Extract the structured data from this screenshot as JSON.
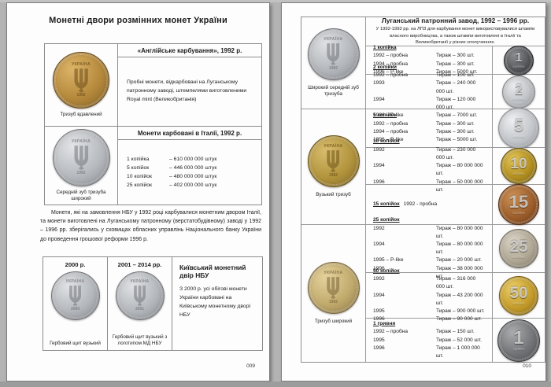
{
  "left_page": {
    "page_number": "009",
    "title": "Монетні двори розмінних монет України",
    "table1": {
      "rows": [
        {
          "header": "«Англійське карбування», 1992 р.",
          "body": "Пробні монети, відкарбовані на Луганському патронному заводі, штемпелями виготовленими Royal mint (Великобританія)",
          "coin_caption": "Тризуб вдавлений",
          "coin": {
            "legend": "УКРАЇНА",
            "year": "1992",
            "size": 72,
            "base": "#b5893c",
            "hi": "#dcb468",
            "lo": "#6c4d1a"
          }
        },
        {
          "header": "Монети карбовані в Італії, 1992 р.",
          "coin_caption": "Середній зуб тризуба широкий",
          "coin": {
            "legend": "УКРАЇНА",
            "year": "1992",
            "size": 73,
            "base": "#b6b9bd",
            "hi": "#e2e4e7",
            "lo": "#74777c"
          },
          "mintages": [
            {
              "denom": "1 копійка",
              "qty": "– 610 000 000 штук"
            },
            {
              "denom": "5 копійок",
              "qty": "– 446 000 000 штук"
            },
            {
              "denom": "10 копійок",
              "qty": "– 480 000 000 штук"
            },
            {
              "denom": "25 копійок",
              "qty": "– 402 000 000 штук"
            }
          ]
        }
      ]
    },
    "paragraph": "Монети, які на замовлення НБУ у 1992 році карбувалися монетним двором Італії, та монети виготовлені на Луганському патронному (верстатобудівному) заводі у 1992 – 1996 рр. зберігались у сховищах обласних управлінь Національного банку України до проведення грошової реформи 1996 р.",
    "table2": {
      "columns": [
        {
          "header": "2000 р.",
          "caption": "Гербовий щит вузький",
          "coin": {
            "legend": "УКРАЇНА",
            "year": "2000",
            "size": 62,
            "base": "#b4b7bb",
            "hi": "#e0e2e5",
            "lo": "#72757a"
          }
        },
        {
          "header": "2001 – 2014 рр.",
          "caption": "Гербовий щит вузький з логотипом МД НБУ",
          "coin": {
            "legend": "УКРАЇНА",
            "year": "2001",
            "size": 62,
            "base": "#b4b7bb",
            "hi": "#e0e2e5",
            "lo": "#72757a"
          }
        }
      ],
      "info": {
        "title": "Київський монетний двір НБУ",
        "body": "З 2000 р. усі обігові монети України карбовані на Київському монетному дворі НБУ"
      }
    }
  },
  "right_page": {
    "page_number": "010",
    "header": {
      "title": "Луганський патронний завод, 1992 – 1996 рр.",
      "subtitle": "У 1992-1993 рр. на ЛПЗ для карбування монет використовувалися штампи власного виробництва, а також штампи виготовлені в Італії та Великобританії у різних сполученнях."
    },
    "groups": [
      {
        "caption": "Широкий середній зуб тризуба",
        "coin": {
          "legend": "УКРАЇНА",
          "year": "1992",
          "size": 66,
          "base": "#b3b6ba",
          "hi": "#dfe1e4",
          "lo": "#717479"
        }
      },
      {
        "caption": "Вузький тризуб",
        "coin": {
          "legend": "УКРАЇНА",
          "year": "1992",
          "size": 66,
          "base": "#b2943d",
          "hi": "#d9bd6e",
          "lo": "#6d5418"
        }
      },
      {
        "caption": "Тризуб широкий",
        "coin": {
          "legend": "УКРАЇНА",
          "year": "1992",
          "size": 66,
          "base": "#c1aa6c",
          "hi": "#e4d29d",
          "lo": "#7a653a"
        }
      }
    ],
    "sections": [
      {
        "name": "1 копійка",
        "coin": {
          "value": "1",
          "sub": "копійка",
          "size": 38,
          "base": "#54565a",
          "hi": "#8a8c90",
          "lo": "#232426"
        },
        "entries": [
          {
            "y": "1992 – пробна",
            "t": "Тираж – 300 шт."
          },
          {
            "y": "1994 – пробна",
            "t": "Тираж – 300 шт."
          },
          {
            "y": "1996 – P-like",
            "t": "Тираж – 5000 шт."
          }
        ]
      },
      {
        "name": "2 копійки",
        "coin": {
          "value": "2",
          "sub": "копійки",
          "size": 42,
          "base": "#c0c3c7",
          "hi": "#e9ebed",
          "lo": "#85888c"
        },
        "entries": [
          {
            "y": "1992 – пробна",
            "t": "Тираж – 100 шт."
          },
          {
            "y": "1993",
            "t": "Тираж – 240 000 000 шт."
          },
          {
            "y": "1994",
            "t": "Тираж – 120 000 000 шт."
          },
          {
            "y": "1996 – P-like",
            "t": "Тираж – 7000 шт."
          }
        ]
      },
      {
        "name": "5 копійок",
        "coin": {
          "value": "5",
          "sub": "копійок",
          "size": 52,
          "base": "#c3c6ca",
          "hi": "#edeff1",
          "lo": "#888b90"
        },
        "entries": [
          {
            "y": "1992 – пробна",
            "t": "Тираж – 300 шт."
          },
          {
            "y": "1994 – пробна",
            "t": "Тираж – 300 шт."
          },
          {
            "y": "1996 – P-like",
            "t": "Тираж – 5000 шт."
          }
        ]
      },
      {
        "name": "10 копійок",
        "coin": {
          "value": "10",
          "sub": "копійок",
          "size": 46,
          "base": "#b3901f",
          "hi": "#e1c257",
          "lo": "#6b5410"
        },
        "entries": [
          {
            "y": "1992",
            "t": "Тираж – 230 000 000 шт."
          },
          {
            "y": "1994",
            "t": "Тираж – 80 000 000 шт."
          },
          {
            "y": "1996",
            "t": "Тираж – 50 000 000 шт."
          }
        ]
      },
      {
        "name": "15 копійок",
        "note": "1992 - пробна",
        "coin": {
          "value": "15",
          "sub": "копійок",
          "size": 52,
          "base": "#9d5e2b",
          "hi": "#ca9055",
          "lo": "#542c0e"
        },
        "entries": []
      },
      {
        "name": "25 копійок",
        "coin": {
          "value": "25",
          "sub": "копійок",
          "size": 50,
          "base": "#b0a794",
          "hi": "#d9d2c4",
          "lo": "#6f6758"
        },
        "entries": [
          {
            "y": "1992",
            "t": "Тираж – 80 000 000 шт."
          },
          {
            "y": "1994",
            "t": "Тираж – 80 000 000 шт."
          },
          {
            "y": "1995 – P-like",
            "t": "Тираж – 20 000 шт."
          },
          {
            "y": "1996",
            "t": "Тираж – 38 000 000 шт."
          }
        ]
      },
      {
        "name": "50 копійок",
        "coin": {
          "value": "50",
          "sub": "копійок",
          "size": 50,
          "base": "#c49b2a",
          "hi": "#eacd68",
          "lo": "#77590f"
        },
        "entries": [
          {
            "y": "1992",
            "t": "Тираж – 316 000 000 шт."
          },
          {
            "y": "1994",
            "t": "Тираж – 43 200 000 шт."
          },
          {
            "y": "1995",
            "t": "Тираж – 900 000 шт."
          },
          {
            "y": "1996",
            "t": "Тираж – 90 000 шт."
          }
        ]
      },
      {
        "name": "1 гривня",
        "coin": {
          "value": "1",
          "sub": "гривня",
          "size": 54,
          "base": "#717376",
          "hi": "#a9abad",
          "lo": "#3c3e40"
        },
        "entries": [
          {
            "y": "1992 – пробна",
            "t": "Тираж – 150 шт."
          },
          {
            "y": "1995",
            "t": "Тираж – 52 000 шт."
          },
          {
            "y": "1996",
            "t": "Тираж – 1 000 000 шт."
          }
        ]
      }
    ]
  }
}
